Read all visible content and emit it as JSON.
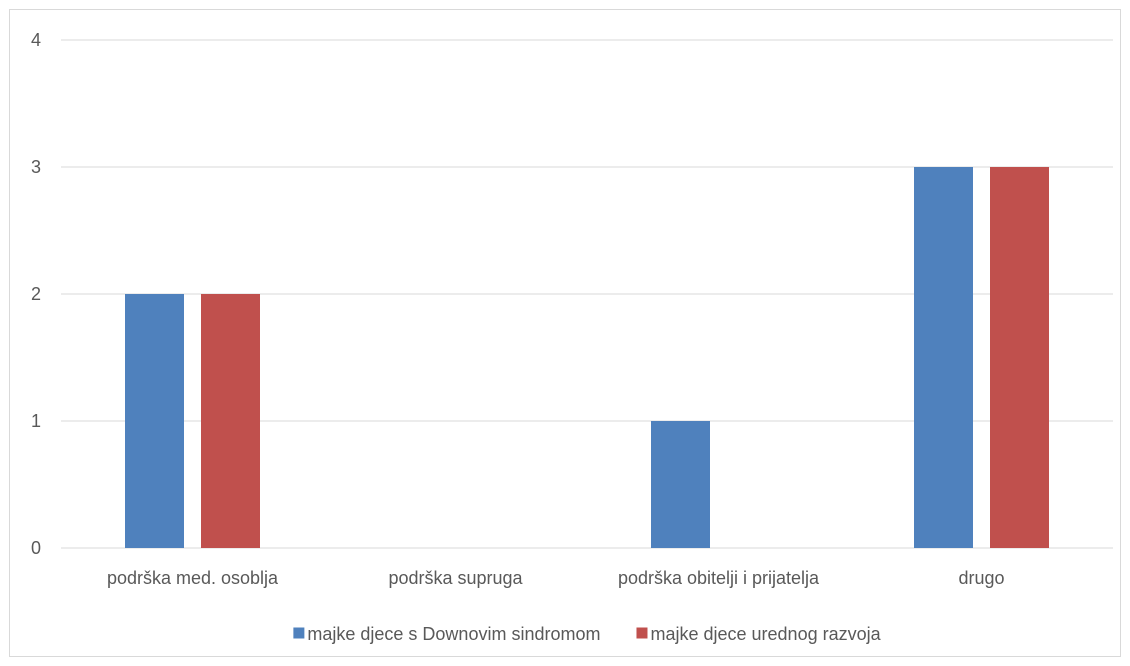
{
  "chart_data": {
    "type": "bar",
    "title": "",
    "xlabel": "",
    "ylabel": "",
    "categories": [
      "podrška med. osoblja",
      "podrška supruga",
      "podrška obitelji i prijatelja",
      "drugo"
    ],
    "series": [
      {
        "name": "majke djece s Downovim sindromom",
        "values": [
          2,
          0,
          1,
          3
        ],
        "color": "#4f81bd"
      },
      {
        "name": "majke djece urednog razvoja",
        "values": [
          2,
          0,
          0,
          3
        ],
        "color": "#c0504d"
      }
    ],
    "ylim": [
      0,
      4
    ],
    "yticks": [
      0,
      1,
      2,
      3,
      4
    ],
    "grid": true,
    "legend": "bottom-center"
  }
}
